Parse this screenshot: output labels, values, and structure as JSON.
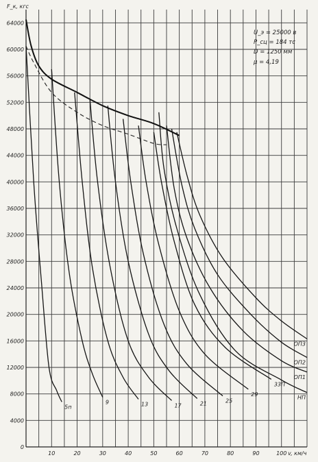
{
  "chart_data": {
    "type": "line",
    "title": "",
    "ylabel": "F_к, кгс",
    "xlabel": "v, км/ч",
    "xlim": [
      0,
      110
    ],
    "ylim": [
      0,
      66000
    ],
    "x_ticks": [
      "10",
      "20",
      "30",
      "40",
      "50",
      "60",
      "70",
      "80",
      "90",
      "100"
    ],
    "y_ticks": [
      "4000",
      "8000",
      "12000",
      "16000",
      "20000",
      "24000",
      "28000",
      "32000",
      "36000",
      "40000",
      "44000",
      "48000",
      "52000",
      "56000",
      "60000",
      "64000"
    ],
    "parameters": [
      "U_э = 25000 в",
      "P_сц = 184 тс",
      "D = 1250 мм",
      "μ = 4,19"
    ],
    "series": [
      {
        "name": "5п",
        "role": "position",
        "points": [
          [
            0,
            60500
          ],
          [
            3,
            40000
          ],
          [
            6,
            25000
          ],
          [
            9,
            12000
          ],
          [
            12,
            8500
          ],
          [
            14,
            6800
          ]
        ]
      },
      {
        "name": "9",
        "role": "position",
        "points": [
          [
            10,
            57000
          ],
          [
            13,
            40000
          ],
          [
            17,
            26000
          ],
          [
            22,
            16000
          ],
          [
            26,
            11000
          ],
          [
            30,
            7500
          ]
        ]
      },
      {
        "name": "13",
        "role": "position",
        "points": [
          [
            19,
            53500
          ],
          [
            22,
            40000
          ],
          [
            26,
            27000
          ],
          [
            32,
            16000
          ],
          [
            38,
            10500
          ],
          [
            44,
            7200
          ]
        ]
      },
      {
        "name": "17",
        "role": "position",
        "points": [
          [
            25,
            52500
          ],
          [
            28,
            40000
          ],
          [
            33,
            27000
          ],
          [
            40,
            16000
          ],
          [
            48,
            10500
          ],
          [
            57,
            7000
          ]
        ]
      },
      {
        "name": "21",
        "role": "position",
        "points": [
          [
            32,
            51500
          ],
          [
            35,
            40000
          ],
          [
            40,
            28000
          ],
          [
            48,
            17000
          ],
          [
            56,
            11500
          ],
          [
            67,
            7300
          ]
        ]
      },
      {
        "name": "25",
        "role": "position",
        "points": [
          [
            38,
            49500
          ],
          [
            41,
            40000
          ],
          [
            46,
            29000
          ],
          [
            54,
            18500
          ],
          [
            63,
            12500
          ],
          [
            77,
            7700
          ]
        ]
      },
      {
        "name": "29",
        "role": "position",
        "points": [
          [
            44,
            48500
          ],
          [
            47,
            40000
          ],
          [
            52,
            30500
          ],
          [
            60,
            20500
          ],
          [
            70,
            14000
          ],
          [
            87,
            8700
          ]
        ]
      },
      {
        "name": "33П",
        "role": "position",
        "points": [
          [
            50,
            47500
          ],
          [
            53,
            40000
          ],
          [
            58,
            31000
          ],
          [
            66,
            21500
          ],
          [
            78,
            15000
          ],
          [
            96,
            10200
          ]
        ]
      },
      {
        "name": "НП",
        "role": "position",
        "points": [
          [
            52,
            50500
          ],
          [
            54,
            42000
          ],
          [
            59,
            33000
          ],
          [
            68,
            23000
          ],
          [
            82,
            14500
          ],
          [
            100,
            10100
          ],
          [
            110,
            8200
          ]
        ]
      },
      {
        "name": "ОП1",
        "role": "position",
        "points": [
          [
            55,
            48500
          ],
          [
            58,
            39000
          ],
          [
            63,
            31500
          ],
          [
            72,
            24000
          ],
          [
            85,
            17500
          ],
          [
            100,
            13000
          ],
          [
            110,
            11300
          ]
        ]
      },
      {
        "name": "ОП2",
        "role": "position",
        "points": [
          [
            57,
            48000
          ],
          [
            61,
            39500
          ],
          [
            66,
            33000
          ],
          [
            75,
            26000
          ],
          [
            88,
            20000
          ],
          [
            100,
            15800
          ],
          [
            110,
            13500
          ]
        ]
      },
      {
        "name": "ОП3",
        "role": "position",
        "points": [
          [
            59,
            47500
          ],
          [
            63,
            41000
          ],
          [
            68,
            35000
          ],
          [
            77,
            28500
          ],
          [
            90,
            22500
          ],
          [
            100,
            19000
          ],
          [
            110,
            16300
          ]
        ]
      },
      {
        "name": "",
        "role": "limit",
        "points": [
          [
            0,
            64500
          ],
          [
            2,
            60500
          ],
          [
            5,
            57500
          ],
          [
            10,
            55500
          ],
          [
            20,
            53500
          ],
          [
            30,
            51500
          ],
          [
            40,
            50000
          ],
          [
            50,
            48800
          ],
          [
            60,
            47000
          ]
        ]
      },
      {
        "name": "",
        "role": "limit-dashed",
        "points": [
          [
            0,
            60500
          ],
          [
            3,
            58000
          ],
          [
            10,
            53500
          ],
          [
            20,
            50500
          ],
          [
            30,
            48500
          ],
          [
            40,
            47200
          ],
          [
            50,
            45800
          ],
          [
            55,
            45600
          ]
        ]
      }
    ],
    "grid": true,
    "legend": "labels at curve ends"
  }
}
